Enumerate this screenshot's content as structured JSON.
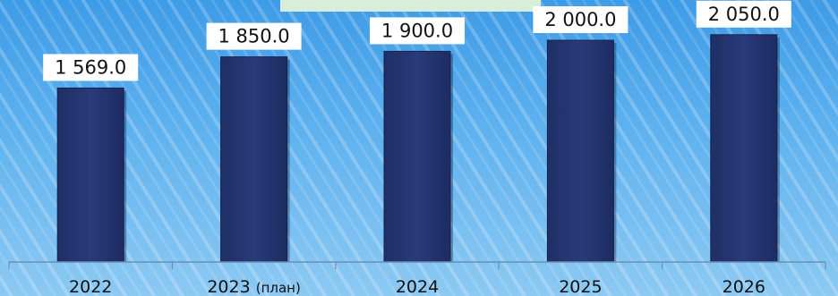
{
  "chart_data": {
    "type": "bar",
    "title": "",
    "xlabel": "",
    "ylabel": "",
    "categories": [
      "2022",
      "2023 (план)",
      "2024",
      "2025",
      "2026"
    ],
    "values": [
      1569.0,
      1850.0,
      1900.0,
      2000.0,
      2050.0
    ],
    "value_labels": [
      "1 569.0",
      "1 850.0",
      "1 900.0",
      "2 000.0",
      "2 050.0"
    ],
    "ylim": [
      0,
      2250
    ],
    "grid": false,
    "legend": "none",
    "colors": {
      "bar": "#283a7a",
      "bar_edge": "#16224d",
      "label_bg": "#ffffff",
      "label_text": "#111111",
      "axis": "#6f8fb0",
      "tick_text": "#111111"
    }
  }
}
